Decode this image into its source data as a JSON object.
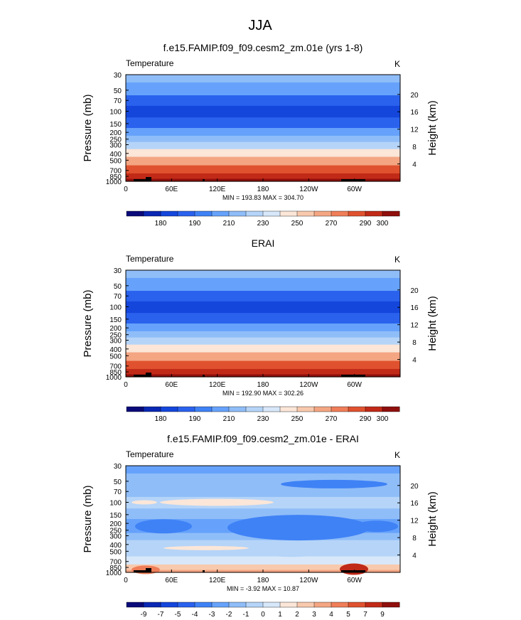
{
  "figure": {
    "title": "JJA"
  },
  "y_axis": {
    "left_label": "Pressure (mb)",
    "right_label": "Height (km)",
    "pressure_ticks": [
      "30",
      "50",
      "70",
      "100",
      "150",
      "200",
      "250",
      "300",
      "400",
      "500",
      "700",
      "850",
      "1000"
    ],
    "height_ticks": [
      "20",
      "16",
      "12",
      "8",
      "4"
    ]
  },
  "x_axis": {
    "ticks": [
      "0",
      "60E",
      "120E",
      "180",
      "120W",
      "60W"
    ]
  },
  "chart_data": [
    {
      "type": "heatmap",
      "title": "f.e15.FAMIP.f09_f09.cesm2_zm.01e (yrs 1-8)",
      "left_label": "Temperature",
      "units": "K",
      "stats": "MIN = 193.83  MAX = 304.70",
      "min": 193.83,
      "max": 304.7,
      "colorbar": {
        "levels": [
          175,
          180,
          185,
          190,
          200,
          210,
          220,
          230,
          240,
          250,
          260,
          270,
          280,
          290,
          300
        ],
        "labels": [
          "180",
          "190",
          "210",
          "230",
          "250",
          "270",
          "290",
          "300"
        ],
        "colors": [
          "#0a0a7a",
          "#0a28b4",
          "#1446dc",
          "#2a62ee",
          "#3f82f6",
          "#66a2fb",
          "#8fbdf8",
          "#b5d4f8",
          "#d8e8fa",
          "#fbe6d8",
          "#f8c9ad",
          "#f4a582",
          "#ef7e58",
          "#e0522f",
          "#c12a17",
          "#8f0f0c"
        ]
      },
      "profile": [
        {
          "p": 30,
          "l": 6
        },
        {
          "p": 50,
          "l": 5
        },
        {
          "p": 70,
          "l": 3
        },
        {
          "p": 100,
          "l": 2
        },
        {
          "p": 150,
          "l": 3
        },
        {
          "p": 200,
          "l": 5
        },
        {
          "p": 250,
          "l": 6
        },
        {
          "p": 300,
          "l": 7
        },
        {
          "p": 400,
          "l": 9
        },
        {
          "p": 500,
          "l": 11
        },
        {
          "p": 700,
          "l": 13
        },
        {
          "p": 850,
          "l": 14
        },
        {
          "p": 1000,
          "l": 15
        }
      ]
    },
    {
      "type": "heatmap",
      "title": "ERAI",
      "left_label": "Temperature",
      "units": "K",
      "stats": "MIN = 192.90  MAX = 302.26",
      "min": 192.9,
      "max": 302.26,
      "colorbar": {
        "levels": [
          175,
          180,
          185,
          190,
          200,
          210,
          220,
          230,
          240,
          250,
          260,
          270,
          280,
          290,
          300
        ],
        "labels": [
          "180",
          "190",
          "210",
          "230",
          "250",
          "270",
          "290",
          "300"
        ],
        "colors": [
          "#0a0a7a",
          "#0a28b4",
          "#1446dc",
          "#2a62ee",
          "#3f82f6",
          "#66a2fb",
          "#8fbdf8",
          "#b5d4f8",
          "#d8e8fa",
          "#fbe6d8",
          "#f8c9ad",
          "#f4a582",
          "#ef7e58",
          "#e0522f",
          "#c12a17",
          "#8f0f0c"
        ]
      },
      "profile": [
        {
          "p": 30,
          "l": 6
        },
        {
          "p": 50,
          "l": 5
        },
        {
          "p": 70,
          "l": 3
        },
        {
          "p": 100,
          "l": 2
        },
        {
          "p": 150,
          "l": 3
        },
        {
          "p": 200,
          "l": 5
        },
        {
          "p": 250,
          "l": 6
        },
        {
          "p": 300,
          "l": 7
        },
        {
          "p": 400,
          "l": 9
        },
        {
          "p": 500,
          "l": 11
        },
        {
          "p": 700,
          "l": 13
        },
        {
          "p": 850,
          "l": 14
        },
        {
          "p": 1000,
          "l": 15
        }
      ]
    },
    {
      "type": "heatmap",
      "title": "f.e15.FAMIP.f09_f09.cesm2_zm.01e - ERAI",
      "left_label": "Temperature",
      "units": "K",
      "stats": "MIN = -3.92  MAX = 10.87",
      "min": -3.92,
      "max": 10.87,
      "colorbar": {
        "levels": [
          -9,
          -7,
          -5,
          -4,
          -3,
          -2,
          -1,
          0,
          1,
          2,
          3,
          4,
          5,
          7,
          9
        ],
        "labels": [
          "-9",
          "-7",
          "-5",
          "-4",
          "-3",
          "-2",
          "-1",
          "0",
          "1",
          "2",
          "3",
          "4",
          "5",
          "7",
          "9"
        ],
        "colors": [
          "#0a0a7a",
          "#0a28b4",
          "#1446dc",
          "#2a62ee",
          "#3f82f6",
          "#66a2fb",
          "#8fbdf8",
          "#b5d4f8",
          "#d8e8fa",
          "#fbe6d8",
          "#f8c9ad",
          "#f4a582",
          "#ef7e58",
          "#e0522f",
          "#c12a17",
          "#8f0f0c"
        ]
      },
      "profile": [
        {
          "p": 30,
          "l": 5
        },
        {
          "p": 50,
          "l": 6
        },
        {
          "p": 70,
          "l": 6
        },
        {
          "p": 100,
          "l": 7
        },
        {
          "p": 150,
          "l": 6
        },
        {
          "p": 200,
          "l": 5
        },
        {
          "p": 250,
          "l": 5
        },
        {
          "p": 300,
          "l": 6
        },
        {
          "p": 400,
          "l": 7
        },
        {
          "p": 500,
          "l": 7
        },
        {
          "p": 700,
          "l": 8
        },
        {
          "p": 850,
          "l": 10
        },
        {
          "p": 1000,
          "l": 11
        }
      ]
    }
  ]
}
